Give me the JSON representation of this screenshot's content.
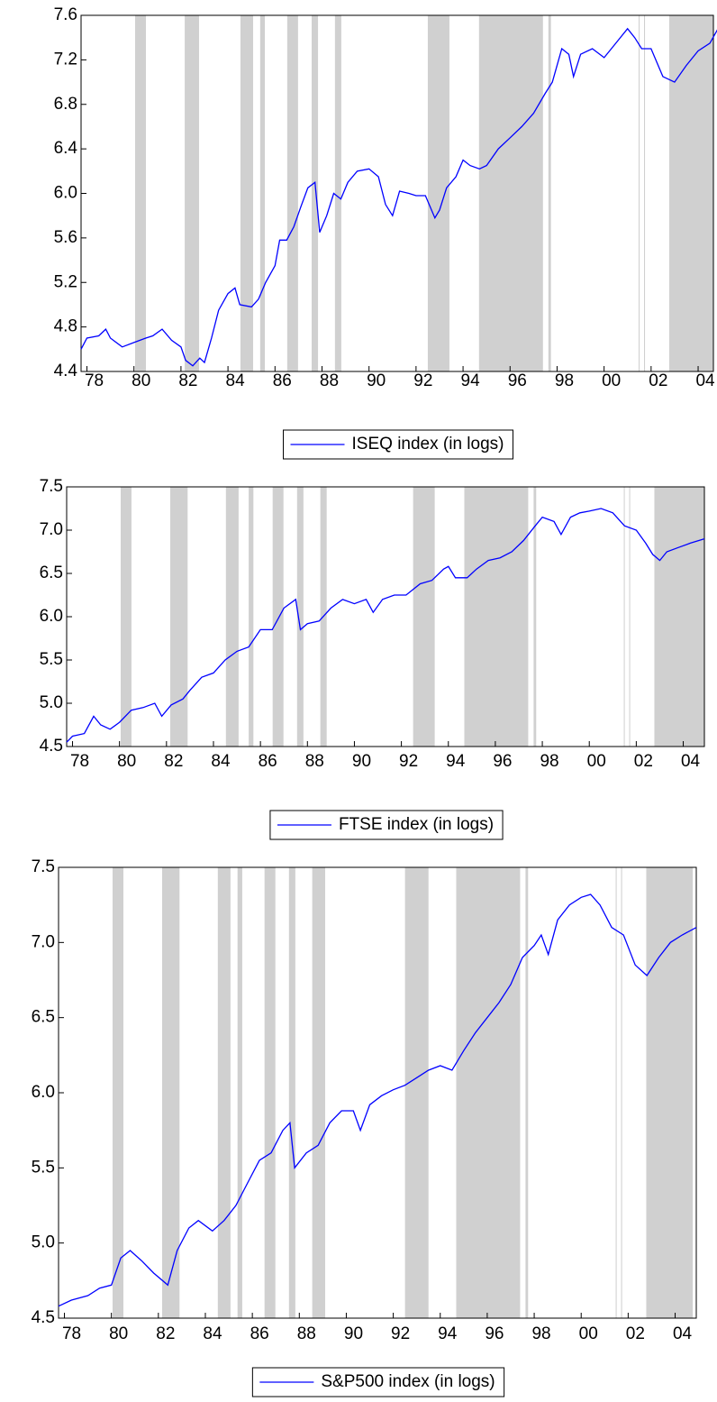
{
  "chart_data": [
    {
      "type": "line",
      "x": [
        77.75,
        78,
        78.5,
        78.8,
        79,
        79.5,
        80,
        80.5,
        80.8,
        81.2,
        81.6,
        82,
        82.2,
        82.5,
        82.8,
        83,
        83.3,
        83.6,
        84,
        84.3,
        84.5,
        85,
        85.3,
        85.6,
        86,
        86.2,
        86.5,
        86.8,
        87.1,
        87.4,
        87.7,
        87.9,
        88.2,
        88.5,
        88.8,
        89.1,
        89.5,
        90,
        90.4,
        90.7,
        91,
        91.3,
        91.7,
        92,
        92.4,
        92.8,
        93,
        93.3,
        93.7,
        94,
        94.3,
        94.7,
        95,
        95.5,
        96,
        96.5,
        97,
        97.5,
        97.8,
        98.2,
        98.5,
        98.7,
        99,
        99.5,
        100,
        100.5,
        101,
        101.3,
        101.6,
        102,
        102.5,
        103,
        103.5,
        104,
        104.5,
        104.9
      ],
      "series": [
        {
          "name": "ISEQ index (in logs)",
          "color": "#0000ff",
          "values": [
            4.6,
            4.7,
            4.72,
            4.78,
            4.7,
            4.62,
            4.66,
            4.7,
            4.72,
            4.78,
            4.68,
            4.62,
            4.5,
            4.45,
            4.52,
            4.48,
            4.7,
            4.95,
            5.1,
            5.15,
            5.0,
            4.98,
            5.05,
            5.2,
            5.35,
            5.58,
            5.58,
            5.7,
            5.88,
            6.05,
            6.1,
            5.65,
            5.8,
            6.0,
            5.95,
            6.1,
            6.2,
            6.22,
            6.15,
            5.9,
            5.8,
            6.02,
            6.0,
            5.98,
            5.98,
            5.78,
            5.85,
            6.05,
            6.15,
            6.3,
            6.25,
            6.22,
            6.25,
            6.4,
            6.5,
            6.6,
            6.72,
            6.9,
            7.0,
            7.3,
            7.25,
            7.05,
            7.25,
            7.3,
            7.22,
            7.35,
            7.48,
            7.4,
            7.3,
            7.3,
            7.05,
            7.0,
            7.15,
            7.28,
            7.35,
            7.5
          ]
        }
      ],
      "xlim": [
        77.75,
        104.65
      ],
      "xticks": [
        78,
        80,
        82,
        84,
        86,
        88,
        90,
        92,
        94,
        96,
        98,
        {
          "value": 100,
          "label": "00"
        },
        {
          "value": 102,
          "label": "02"
        },
        {
          "value": 104,
          "label": "04"
        }
      ],
      "ylim": [
        4.4,
        7.6
      ],
      "yticks": [
        4.4,
        4.8,
        5.2,
        5.6,
        6.0,
        6.4,
        6.8,
        7.2,
        7.6
      ],
      "shaded_periods": [
        [
          80.05,
          80.51
        ],
        [
          82.16,
          82.77
        ],
        [
          84.53,
          85.07
        ],
        [
          85.37,
          85.57
        ],
        [
          86.52,
          86.98
        ],
        [
          87.56,
          87.83
        ],
        [
          88.55,
          88.82
        ],
        [
          92.5,
          93.42
        ],
        [
          94.68,
          97.4
        ],
        [
          97.63,
          97.74
        ],
        [
          101.47,
          101.51
        ],
        [
          101.7,
          101.74
        ],
        [
          102.77,
          104.65
        ]
      ],
      "shade_color": "#d0d0d0",
      "legend": "bottom"
    },
    {
      "type": "line",
      "x": [
        77.75,
        78,
        78.5,
        78.9,
        79.2,
        79.6,
        80,
        80.5,
        81,
        81.5,
        81.8,
        82.2,
        82.7,
        83,
        83.5,
        84,
        84.5,
        85,
        85.5,
        86,
        86.5,
        87,
        87.5,
        87.7,
        88,
        88.5,
        89,
        89.5,
        90,
        90.5,
        90.8,
        91.2,
        91.7,
        92.2,
        92.8,
        93.3,
        93.8,
        94,
        94.3,
        94.8,
        95.2,
        95.7,
        96.2,
        96.7,
        97.2,
        97.7,
        98,
        98.5,
        98.8,
        99.2,
        99.6,
        100,
        100.5,
        101,
        101.5,
        102,
        102.4,
        102.7,
        103,
        103.3,
        103.8,
        104.3,
        104.9
      ],
      "series": [
        {
          "name": "FTSE index (in logs)",
          "color": "#0000ff",
          "values": [
            4.55,
            4.62,
            4.65,
            4.85,
            4.75,
            4.7,
            4.78,
            4.92,
            4.95,
            5.0,
            4.85,
            4.98,
            5.05,
            5.15,
            5.3,
            5.35,
            5.5,
            5.6,
            5.65,
            5.85,
            5.85,
            6.1,
            6.2,
            5.85,
            5.92,
            5.95,
            6.1,
            6.2,
            6.15,
            6.2,
            6.05,
            6.2,
            6.25,
            6.25,
            6.38,
            6.42,
            6.55,
            6.58,
            6.45,
            6.45,
            6.55,
            6.65,
            6.68,
            6.75,
            6.88,
            7.05,
            7.15,
            7.1,
            6.95,
            7.15,
            7.2,
            7.22,
            7.25,
            7.2,
            7.05,
            7.0,
            6.85,
            6.72,
            6.65,
            6.75,
            6.8,
            6.85,
            6.9
          ]
        }
      ],
      "xlim": [
        77.75,
        104.9
      ],
      "xticks": [
        78,
        80,
        82,
        84,
        86,
        88,
        90,
        92,
        94,
        96,
        98,
        {
          "value": 100,
          "label": "00"
        },
        {
          "value": 102,
          "label": "02"
        },
        {
          "value": 104,
          "label": "04"
        }
      ],
      "ylim": [
        4.5,
        7.5
      ],
      "yticks": [
        4.5,
        5.0,
        5.5,
        6.0,
        6.5,
        7.0,
        7.5
      ],
      "shaded_periods": [
        [
          80.05,
          80.51
        ],
        [
          82.16,
          82.9
        ],
        [
          84.53,
          85.07
        ],
        [
          85.5,
          85.7
        ],
        [
          86.52,
          86.98
        ],
        [
          87.56,
          87.83
        ],
        [
          88.55,
          88.82
        ],
        [
          92.5,
          93.42
        ],
        [
          94.68,
          97.4
        ],
        [
          97.63,
          97.74
        ],
        [
          101.47,
          101.51
        ],
        [
          101.7,
          101.74
        ],
        [
          102.77,
          104.9
        ]
      ],
      "shade_color": "#d0d0d0",
      "legend": "bottom"
    },
    {
      "type": "line",
      "x": [
        77.75,
        78.3,
        79,
        79.5,
        80,
        80.4,
        80.8,
        81.3,
        81.8,
        82.4,
        82.8,
        83.3,
        83.7,
        84.3,
        84.8,
        85.3,
        85.8,
        86.3,
        86.8,
        87.3,
        87.6,
        87.8,
        88.3,
        88.8,
        89.3,
        89.8,
        90.3,
        90.6,
        91,
        91.5,
        92,
        92.5,
        93,
        93.5,
        94,
        94.5,
        95,
        95.5,
        96,
        96.5,
        97,
        97.5,
        98,
        98.3,
        98.6,
        99,
        99.5,
        100,
        100.4,
        100.8,
        101.3,
        101.8,
        102.3,
        102.8,
        103.3,
        103.8,
        104.3,
        104.9
      ],
      "series": [
        {
          "name": "S&P500 index (in logs)",
          "color": "#0000ff",
          "values": [
            4.58,
            4.62,
            4.65,
            4.7,
            4.72,
            4.9,
            4.95,
            4.88,
            4.8,
            4.72,
            4.95,
            5.1,
            5.15,
            5.08,
            5.15,
            5.25,
            5.4,
            5.55,
            5.6,
            5.75,
            5.8,
            5.5,
            5.6,
            5.65,
            5.8,
            5.88,
            5.88,
            5.75,
            5.92,
            5.98,
            6.02,
            6.05,
            6.1,
            6.15,
            6.18,
            6.15,
            6.28,
            6.4,
            6.5,
            6.6,
            6.72,
            6.9,
            6.98,
            7.05,
            6.92,
            7.15,
            7.25,
            7.3,
            7.32,
            7.25,
            7.1,
            7.05,
            6.85,
            6.78,
            6.9,
            7.0,
            7.05,
            7.1
          ]
        }
      ],
      "xlim": [
        77.75,
        104.9
      ],
      "xticks": [
        78,
        80,
        82,
        84,
        86,
        88,
        90,
        92,
        94,
        96,
        98,
        {
          "value": 100,
          "label": "00"
        },
        {
          "value": 102,
          "label": "02"
        },
        {
          "value": 104,
          "label": "04"
        }
      ],
      "ylim": [
        4.5,
        7.5
      ],
      "yticks": [
        4.5,
        5.0,
        5.5,
        6.0,
        6.5,
        7.0,
        7.5
      ],
      "shaded_periods": [
        [
          80.05,
          80.51
        ],
        [
          82.16,
          82.9
        ],
        [
          84.53,
          85.07
        ],
        [
          85.37,
          85.57
        ],
        [
          86.52,
          86.98
        ],
        [
          87.56,
          87.83
        ],
        [
          88.55,
          89.1
        ],
        [
          92.5,
          93.5
        ],
        [
          94.68,
          97.4
        ],
        [
          97.63,
          97.74
        ],
        [
          101.47,
          101.51
        ],
        [
          101.7,
          101.74
        ],
        [
          102.77,
          104.75
        ]
      ],
      "shade_color": "#d0d0d0",
      "legend": "bottom"
    }
  ]
}
